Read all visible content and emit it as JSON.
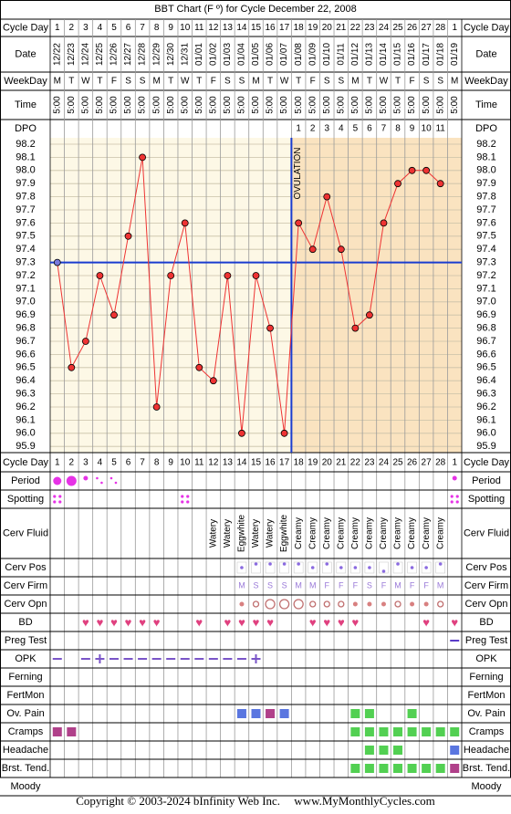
{
  "title": "BBT Chart (F º) for Cycle December 22, 2008",
  "row_labels": {
    "cycle_day": "Cycle Day",
    "date": "Date",
    "weekday": "WeekDay",
    "time": "Time",
    "dpo": "DPO",
    "period": "Period",
    "spotting": "Spotting",
    "cerv_fluid": "Cerv Fluid",
    "cerv_pos": "Cerv Pos",
    "cerv_firm": "Cerv Firm",
    "cerv_opn": "Cerv Opn",
    "bd": "BD",
    "preg_test": "Preg Test",
    "opk": "OPK",
    "ferning": "Ferning",
    "fertmon": "FertMon",
    "ov_pain": "Ov. Pain",
    "cramps": "Cramps",
    "headache": "Headache",
    "brst_tend": "Brst. Tend.",
    "moody": "Moody"
  },
  "columns": {
    "cycle_day": [
      "1",
      "2",
      "3",
      "4",
      "5",
      "6",
      "7",
      "8",
      "9",
      "10",
      "11",
      "12",
      "13",
      "14",
      "15",
      "16",
      "17",
      "18",
      "19",
      "20",
      "21",
      "22",
      "23",
      "24",
      "25",
      "26",
      "27",
      "28",
      "1"
    ],
    "dates": [
      "12/22",
      "12/23",
      "12/24",
      "12/25",
      "12/26",
      "12/27",
      "12/28",
      "12/29",
      "12/30",
      "12/31",
      "01/01",
      "01/02",
      "01/03",
      "01/04",
      "01/05",
      "01/06",
      "01/07",
      "01/08",
      "01/09",
      "01/10",
      "01/11",
      "01/12",
      "01/13",
      "01/14",
      "01/15",
      "01/16",
      "01/17",
      "01/18",
      "01/19"
    ],
    "weekday": [
      "M",
      "T",
      "W",
      "T",
      "F",
      "S",
      "S",
      "M",
      "T",
      "W",
      "T",
      "F",
      "S",
      "S",
      "M",
      "T",
      "W",
      "T",
      "F",
      "S",
      "S",
      "M",
      "T",
      "W",
      "T",
      "F",
      "S",
      "S",
      "M"
    ],
    "time": [
      "5:00",
      "5:00",
      "5:00",
      "5:00",
      "5:00",
      "5:00",
      "5:00",
      "5:00",
      "5:00",
      "5:00",
      "5:00",
      "5:00",
      "5:00",
      "5:00",
      "5:00",
      "5:00",
      "5:00",
      "5:00",
      "5:00",
      "5:00",
      "5:00",
      "5:00",
      "5:00",
      "5:00",
      "5:00",
      "5:00",
      "5:00",
      "5:00",
      "5:00"
    ],
    "dpo": [
      "",
      "",
      "",
      "",
      "",
      "",
      "",
      "",
      "",
      "",
      "",
      "",
      "",
      "",
      "",
      "",
      "",
      "1",
      "2",
      "3",
      "4",
      "5",
      "6",
      "7",
      "8",
      "9",
      "10",
      "11",
      ""
    ]
  },
  "chart_data": {
    "type": "line",
    "title": "BBT Chart (F º) for Cycle December 22, 2008",
    "x": [
      1,
      2,
      3,
      4,
      5,
      6,
      7,
      8,
      9,
      10,
      11,
      12,
      13,
      14,
      15,
      16,
      17,
      18,
      19,
      20,
      21,
      22,
      23,
      24,
      25,
      26,
      27,
      28
    ],
    "y": [
      97.3,
      96.5,
      96.7,
      97.2,
      96.9,
      97.5,
      98.1,
      96.2,
      97.2,
      97.6,
      96.5,
      96.4,
      97.2,
      96.0,
      97.2,
      96.8,
      96.0,
      97.6,
      97.4,
      97.8,
      97.4,
      96.8,
      96.9,
      97.6,
      97.9,
      98.0,
      98.0,
      97.9
    ],
    "ylim": [
      95.9,
      98.2
    ],
    "y_ticks": [
      "98.2",
      "98.1",
      "98.0",
      "97.9",
      "97.8",
      "97.7",
      "97.6",
      "97.5",
      "97.4",
      "97.3",
      "97.2",
      "97.1",
      "97.0",
      "96.9",
      "96.8",
      "96.7",
      "96.6",
      "96.5",
      "96.4",
      "96.3",
      "96.2",
      "96.1",
      "96.0",
      "95.9"
    ],
    "coverline": 97.3,
    "ovulation_day": 17,
    "ovulation_label": "OVULATION",
    "colors": {
      "pre_bg": "#fdf8e6",
      "post_bg": "#fae3c0",
      "temp_line": "#ee3333",
      "coverline": "#1a3ccf",
      "grid": "#c9c1a8"
    }
  },
  "observations": {
    "period": {
      "1": "big",
      "2": "huge",
      "3": "small",
      "4": "dots",
      "5": "dots",
      "29": "small"
    },
    "spotting": {
      "1": "x",
      "10": "x",
      "29": "x"
    },
    "cerv_fluid": {
      "12": "Watery",
      "13": "Watery",
      "14": "Eggwhite",
      "15": "Watery",
      "16": "Watery",
      "17": "Eggwhite",
      "18": "Creamy",
      "19": "Creamy",
      "20": "Creamy",
      "21": "Creamy",
      "22": "Creamy",
      "23": "Creamy",
      "24": "Creamy",
      "25": "Creamy",
      "26": "Creamy",
      "27": "Creamy",
      "28": "Creamy"
    },
    "cerv_pos": {
      "14": "1",
      "15": "2",
      "16": "2",
      "17": "2",
      "18": "2",
      "19": "1",
      "20": "2",
      "21": "1",
      "22": "1",
      "23": "1",
      "24": "0",
      "25": "2",
      "26": "1",
      "27": "1",
      "28": "2"
    },
    "cerv_firm": {
      "14": "M",
      "15": "S",
      "16": "S",
      "17": "S",
      "18": "M",
      "19": "M",
      "20": "F",
      "21": "F",
      "22": "F",
      "23": "S",
      "24": "F",
      "25": "M",
      "26": "F",
      "27": "F",
      "28": "M"
    },
    "cerv_opn": {
      "14": "dot",
      "15": "ring",
      "16": "ringlg",
      "17": "ringlg",
      "18": "ringlg",
      "19": "ring",
      "20": "ring",
      "21": "ring",
      "22": "dot",
      "23": "dot",
      "24": "dot",
      "25": "ring",
      "26": "dot",
      "27": "dot",
      "28": "ring"
    },
    "bd": [
      "3",
      "4",
      "5",
      "6",
      "7",
      "8",
      "11",
      "13",
      "14",
      "15",
      "16",
      "19",
      "20",
      "21",
      "22",
      "27",
      "29"
    ],
    "preg_test": {
      "29": "negative"
    },
    "opk": {
      "1": "neg",
      "3": "neg",
      "4": "pos",
      "5": "neg",
      "6": "neg",
      "7": "neg",
      "8": "neg",
      "9": "neg",
      "10": "neg",
      "11": "neg",
      "12": "neg",
      "13": "neg",
      "14": "neg",
      "15": "pos"
    },
    "ov_pain": {
      "14": "blue",
      "15": "blue",
      "16": "purple",
      "17": "blue",
      "22": "green",
      "23": "green",
      "26": "green"
    },
    "cramps": {
      "1": "purple",
      "2": "purple",
      "22": "green",
      "23": "green",
      "24": "green",
      "25": "green",
      "26": "green",
      "27": "green",
      "28": "green",
      "29": "green"
    },
    "headache": {
      "23": "green",
      "24": "green",
      "25": "green",
      "29": "blue"
    },
    "brst_tend": {
      "22": "green",
      "23": "green",
      "24": "green",
      "25": "green",
      "26": "green",
      "27": "green",
      "28": "green",
      "29": "purple"
    }
  },
  "footer": {
    "copyright": "Copyright © 2003-2024 bInfinity Web Inc.",
    "site": "www.MyMonthlyCycles.com"
  }
}
